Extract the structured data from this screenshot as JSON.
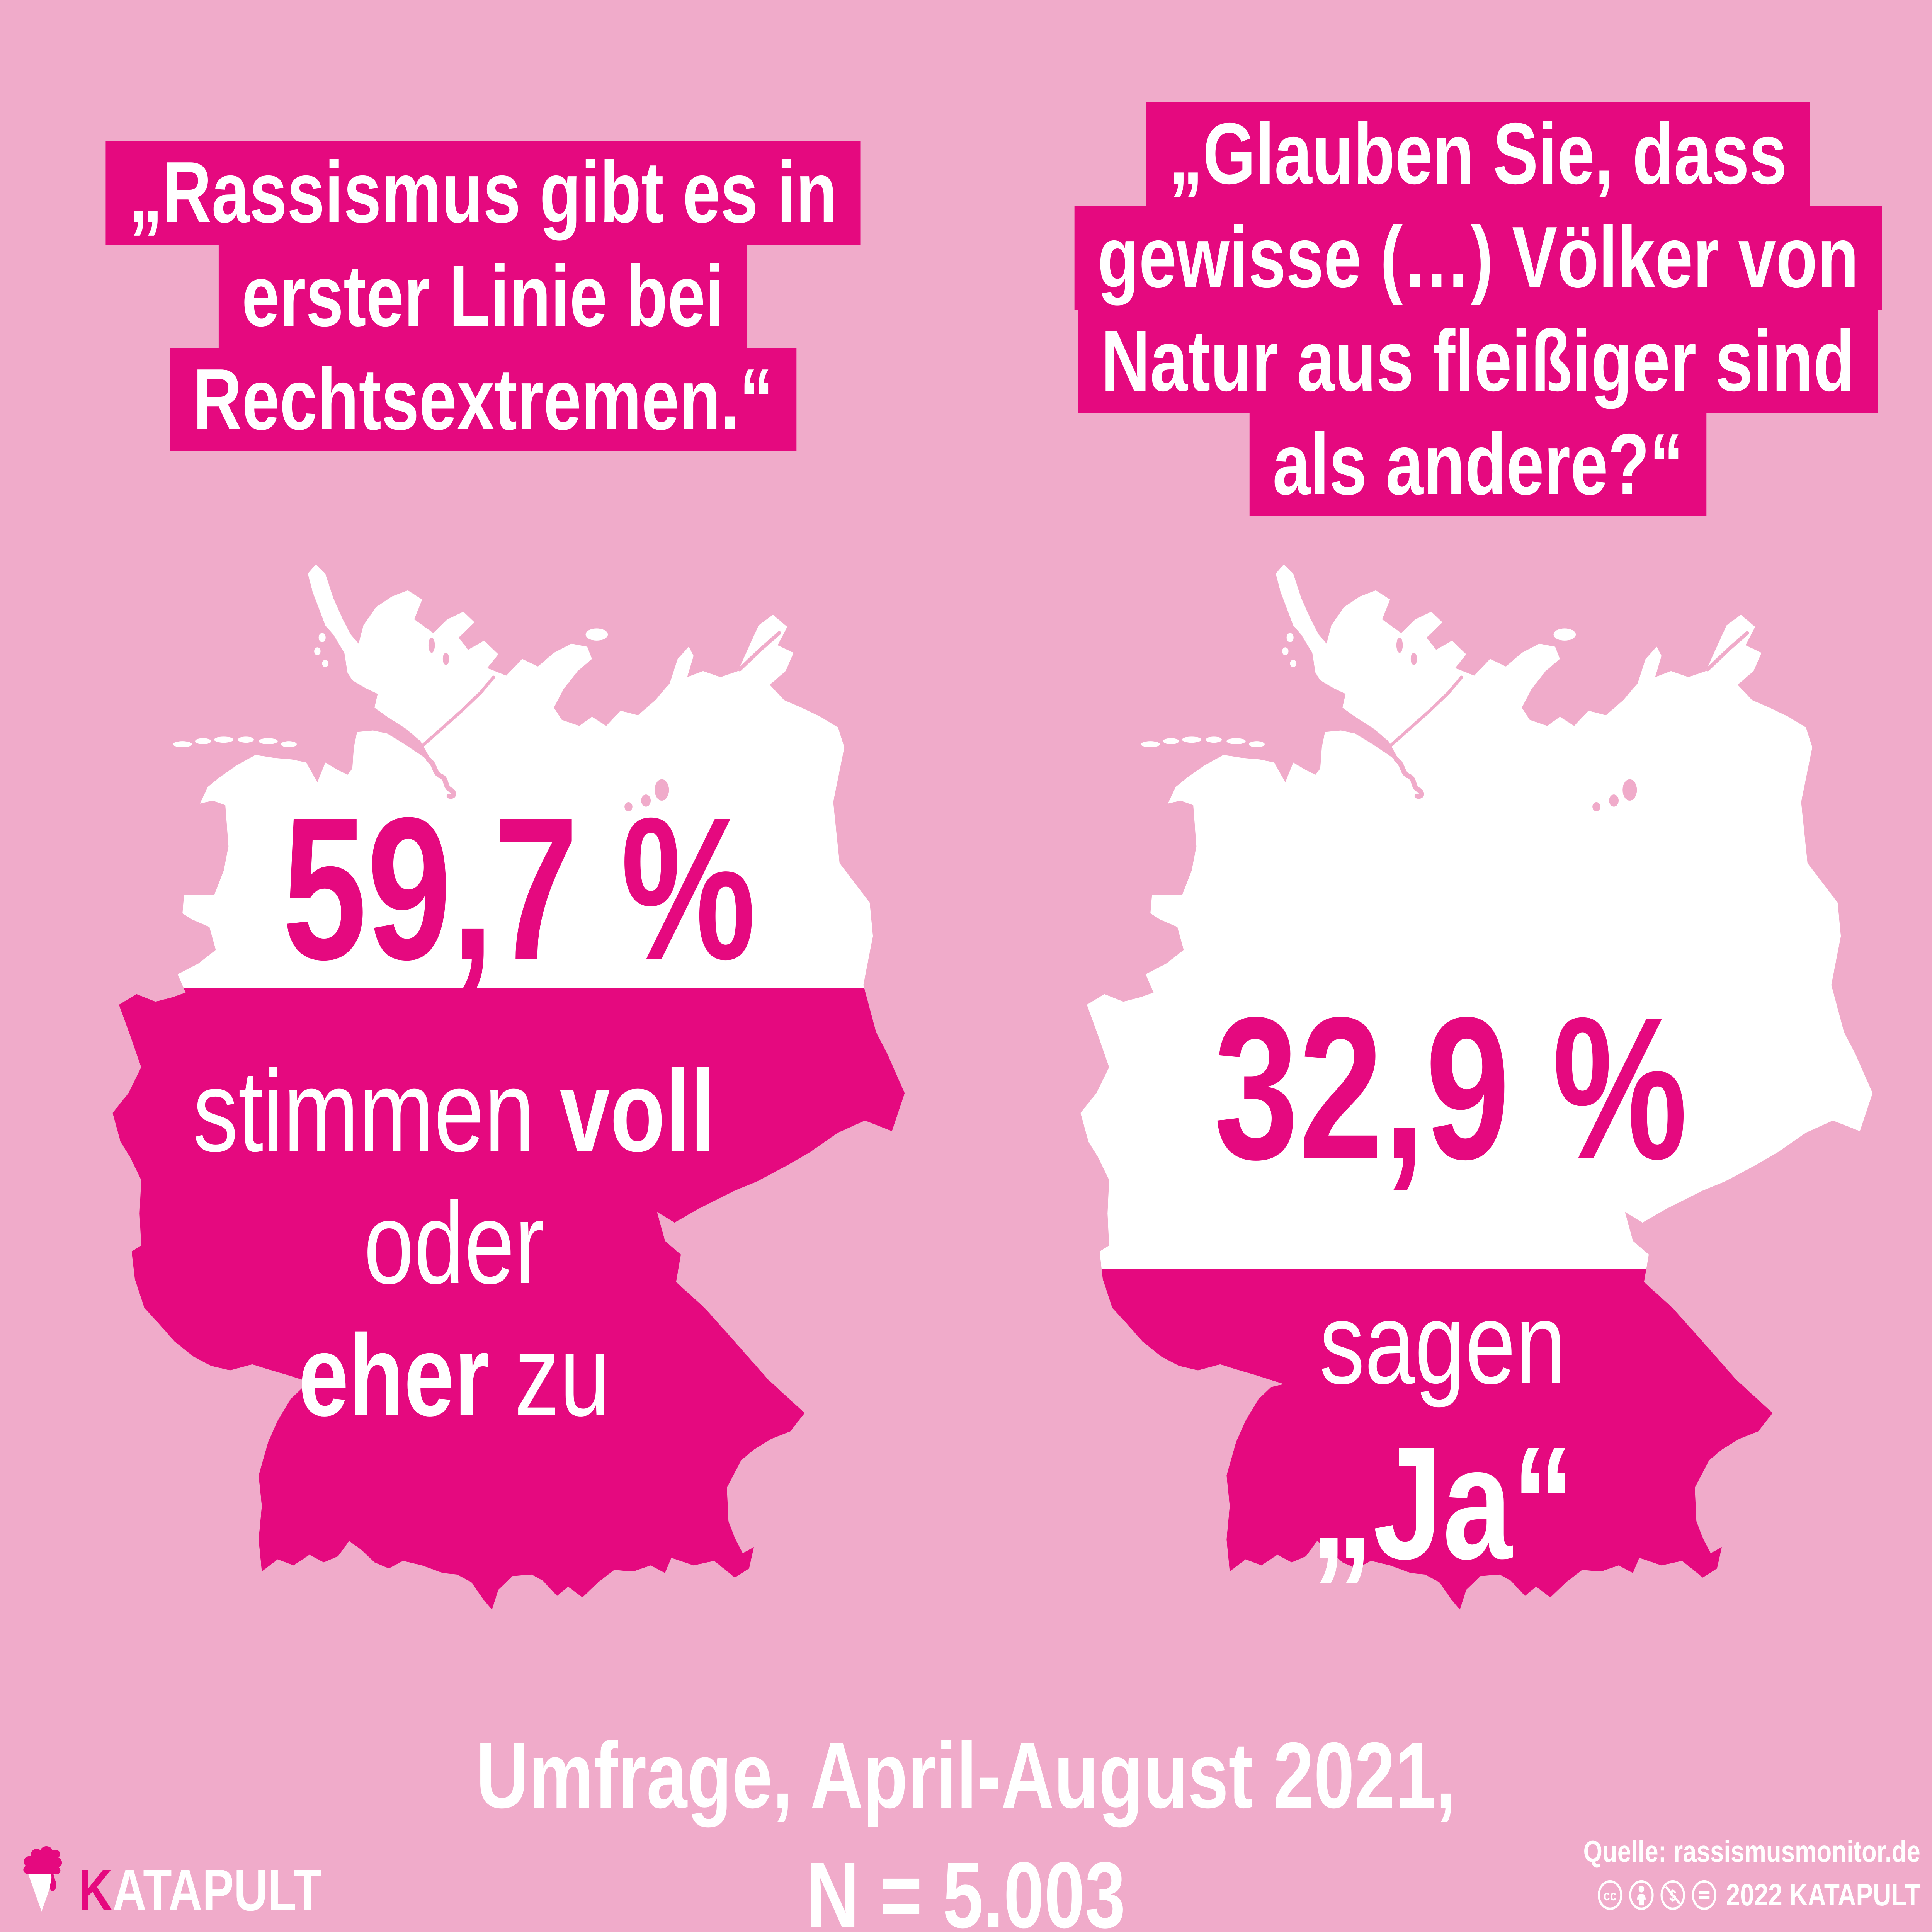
{
  "colors": {
    "bg": "#f0abca",
    "magenta": "#e5097f",
    "white": "#ffffff"
  },
  "quote_left": {
    "lines": [
      "„Rassismus gibt es in",
      "erster Linie bei",
      "Rechtsextremen.“"
    ]
  },
  "quote_right": {
    "lines": [
      "„Glauben Sie, dass",
      "gewisse (…) Völker von",
      "Natur aus fleißiger sind",
      "als andere?“"
    ]
  },
  "map_left": {
    "value": "59,7 %",
    "fill_percent": 59.7,
    "caption": {
      "pre": "stimmen ",
      "bold1": "voll",
      "mid": "oder",
      "bold2": "eher",
      "post": " zu"
    }
  },
  "map_right": {
    "value": "32,9 %",
    "fill_percent": 32.9,
    "caption": {
      "line1": "sagen",
      "line2": "„Ja“"
    }
  },
  "footer": {
    "line1": "Umfrage, April-August 2021,",
    "line2": "N = 5.003"
  },
  "brand": {
    "k": "K",
    "rest": "ATAPULT"
  },
  "source": {
    "line1": "Quelle: rassismusmonitor.de",
    "line2": "2022 KATAPULT",
    "license": "CC BY-NC-ND",
    "icons": [
      "cc-icon",
      "by-icon",
      "nc-icon",
      "nd-icon"
    ]
  },
  "chart_data": {
    "type": "bar",
    "variant": "germany-silhouette-fill-pictogram",
    "categories": [
      "„Rassismus gibt es in erster Linie bei Rechtsextremen.“ — stimmen voll oder eher zu",
      "„Glauben Sie, dass gewisse (…) Völker von Natur aus fleißiger sind als andere?“ — sagen „Ja“"
    ],
    "values": [
      59.7,
      32.9
    ],
    "value_labels": [
      "59,7 %",
      "32,9 %"
    ],
    "unit": "%",
    "ylim": [
      0,
      100
    ],
    "title": "Umfrage, April-August 2021, N = 5.003",
    "source": "rassismusmonitor.de"
  }
}
